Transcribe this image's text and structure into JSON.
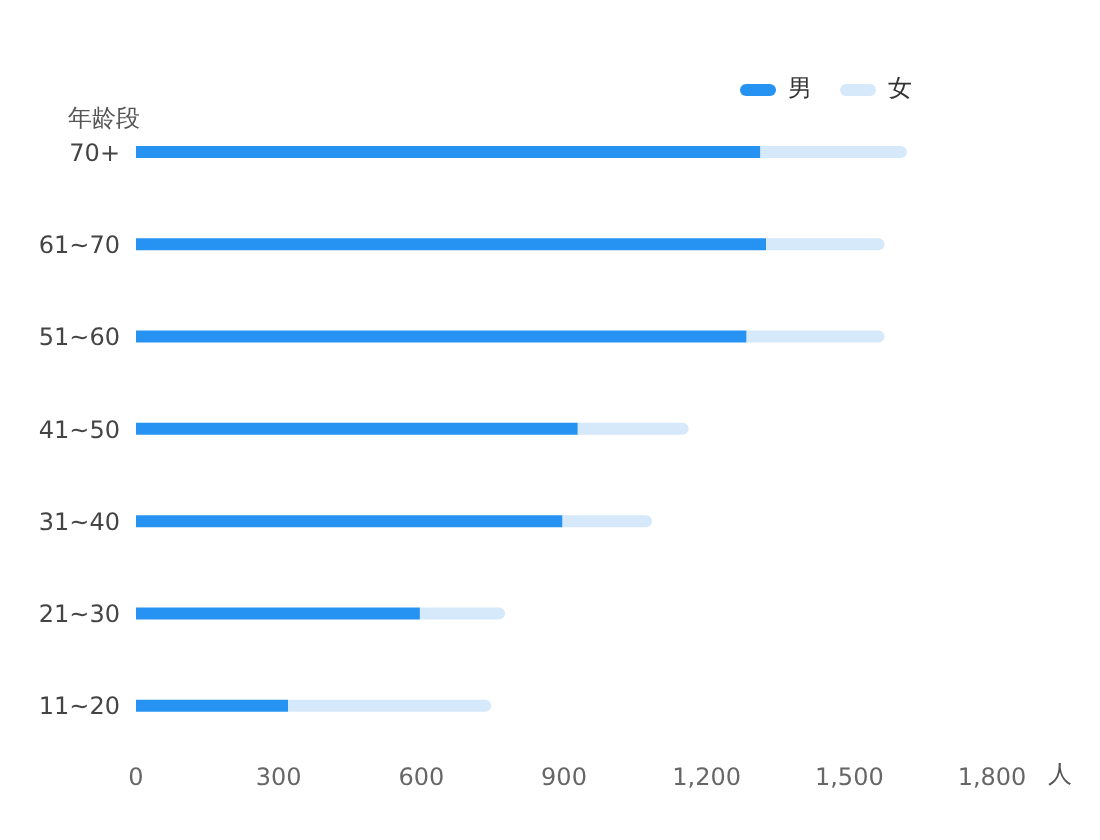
{
  "chart_data": {
    "type": "bar",
    "orientation": "horizontal",
    "stacked": true,
    "ylabel": "年龄段",
    "xlabel": "人",
    "categories": [
      "70+",
      "61~70",
      "51~60",
      "41~50",
      "31~40",
      "21~30",
      "11~20"
    ],
    "series": [
      {
        "name": "男",
        "color": "#2693f3",
        "values": [
          1313,
          1325,
          1284,
          929,
          897,
          597,
          320
        ]
      },
      {
        "name": "女",
        "color": "#d6e9fb",
        "values": [
          308,
          249,
          290,
          233,
          188,
          179,
          427
        ]
      }
    ],
    "xlim": [
      0,
      1800
    ],
    "xticks": [
      {
        "value": 0,
        "label": "0"
      },
      {
        "value": 300,
        "label": "300"
      },
      {
        "value": 600,
        "label": "600"
      },
      {
        "value": 900,
        "label": "900"
      },
      {
        "value": 1200,
        "label": "1,200"
      },
      {
        "value": 1500,
        "label": "1,500"
      },
      {
        "value": 1800,
        "label": "1,800"
      }
    ],
    "grid": false,
    "legend": "top right"
  }
}
